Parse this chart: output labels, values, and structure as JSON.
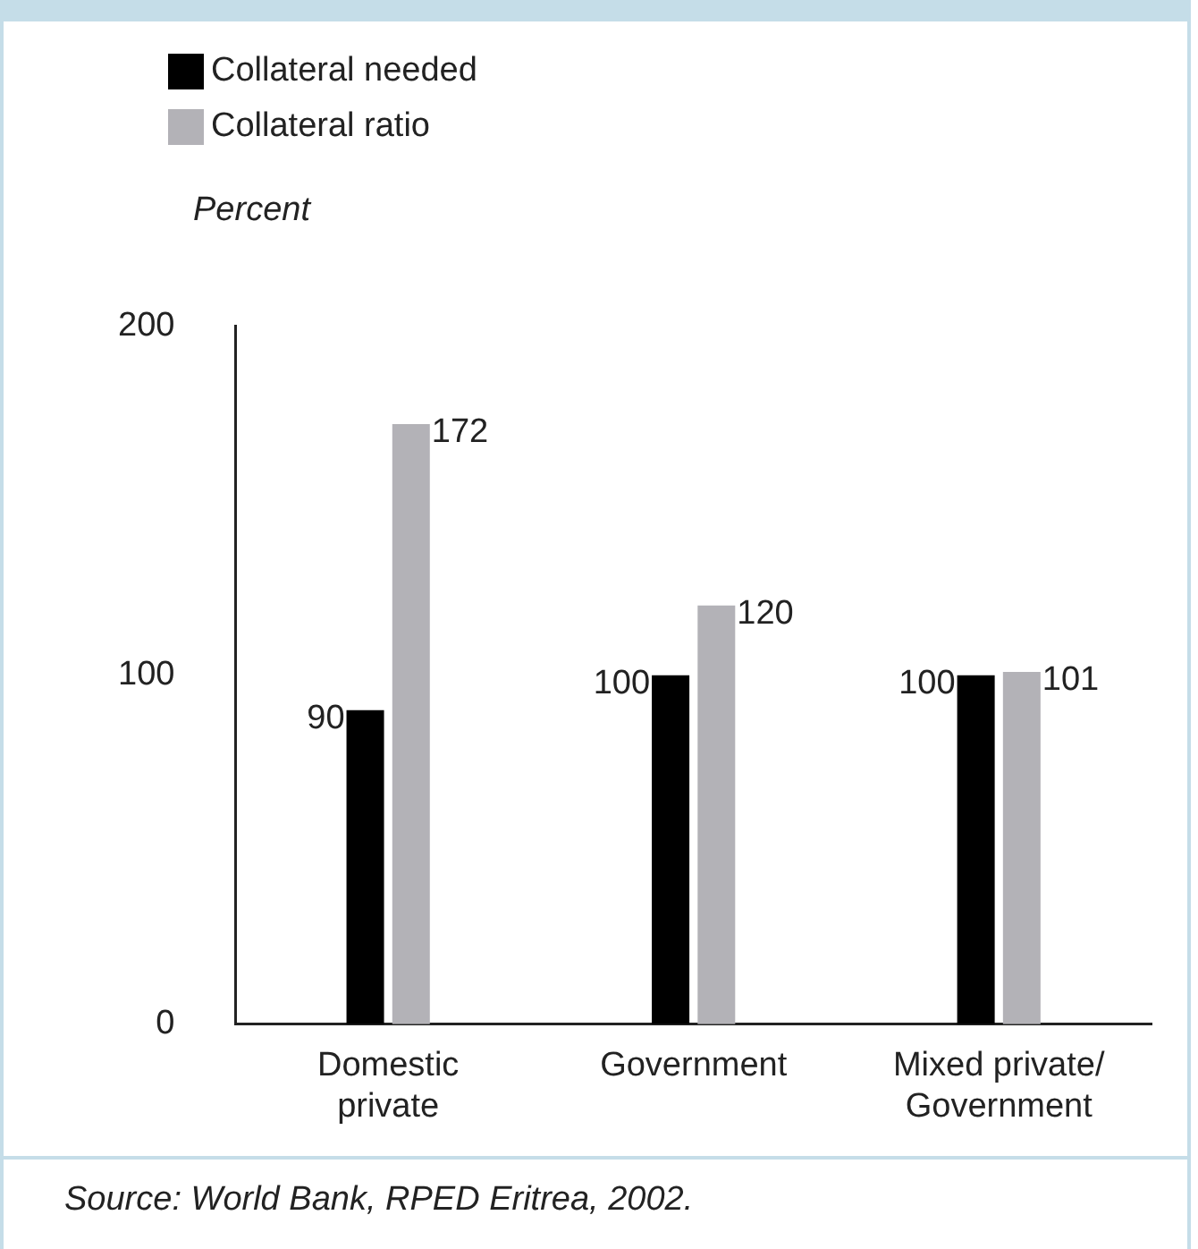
{
  "chart_data": {
    "type": "bar",
    "ylabel": "Percent",
    "categories": [
      "Domestic\nprivate",
      "Government",
      "Mixed private/\nGovernment"
    ],
    "series": [
      {
        "name": "Collateral needed",
        "color": "#000000",
        "values": [
          90,
          100,
          100
        ]
      },
      {
        "name": "Collateral ratio",
        "color": "#b3b2b7",
        "values": [
          172,
          120,
          101
        ]
      }
    ],
    "ylim": [
      0,
      200
    ],
    "yticks": [
      0,
      100,
      200
    ],
    "grid": false,
    "legend": "top left",
    "data_labels": true,
    "annotations": [
      "Source: World Bank, RPED Eritrea, 2002."
    ]
  }
}
